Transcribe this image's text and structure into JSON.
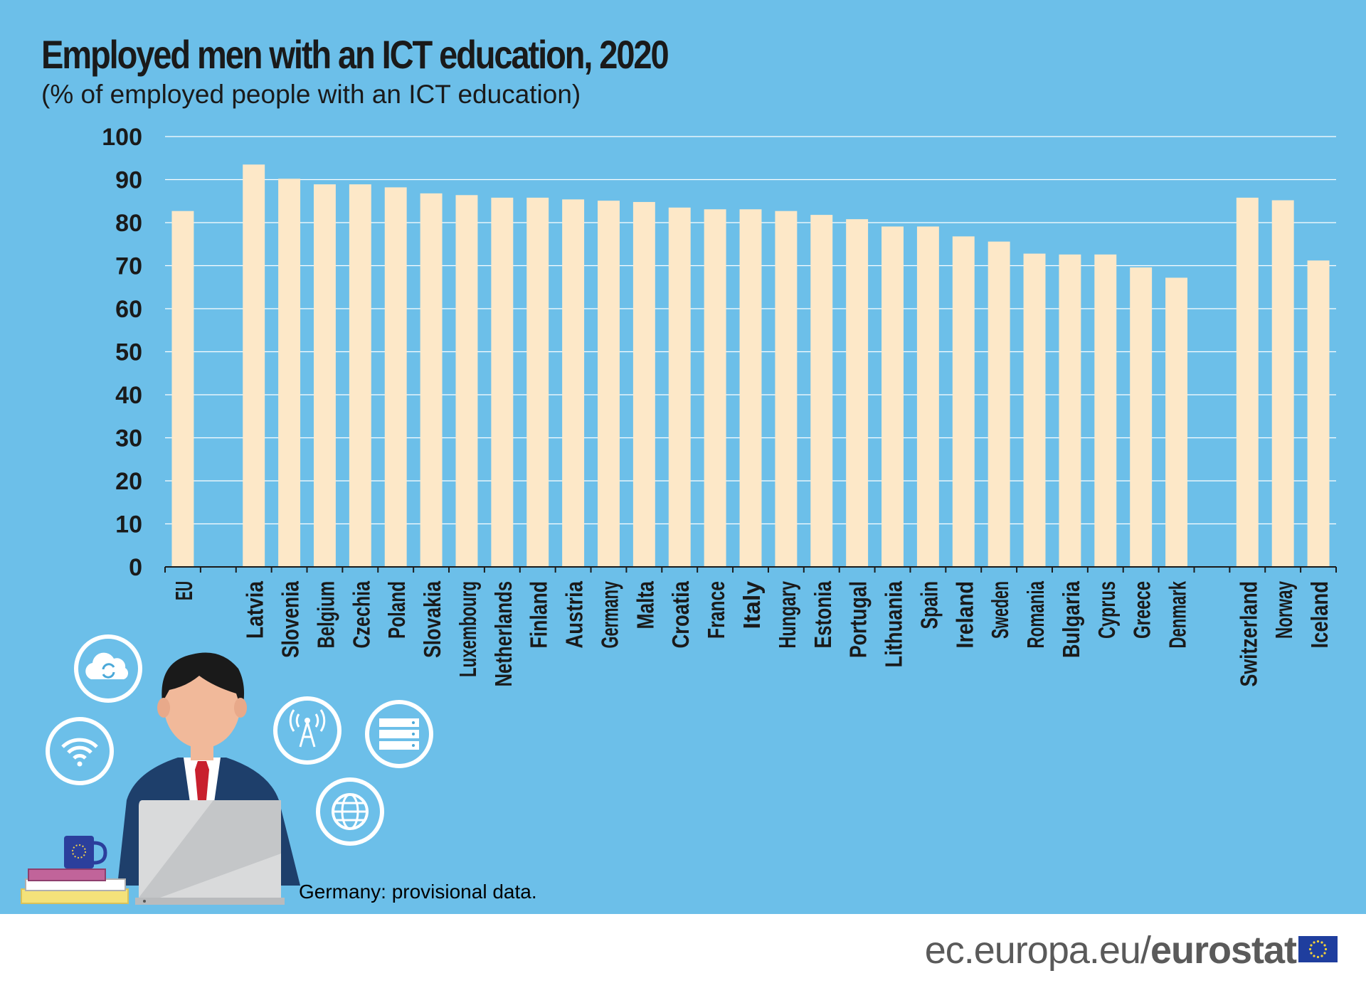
{
  "chart_data": {
    "type": "bar",
    "title": "Employed men with an ICT education, 2020",
    "subtitle": "(% of employed people with an ICT education)",
    "xlabel": "",
    "ylabel": "",
    "ylim": [
      0,
      100
    ],
    "yticks": [
      0,
      10,
      20,
      30,
      40,
      50,
      60,
      70,
      80,
      90,
      100
    ],
    "grid": true,
    "legend": "none",
    "categories": [
      "EU",
      "",
      "Latvia",
      "Slovenia",
      "Belgium",
      "Czechia",
      "Poland",
      "Slovakia",
      "Luxembourg",
      "Netherlands",
      "Finland",
      "Austria",
      "Germany",
      "Malta",
      "Croatia",
      "France",
      "Italy",
      "Hungary",
      "Estonia",
      "Portugal",
      "Lithuania",
      "Spain",
      "Ireland",
      "Sweden",
      "Romania",
      "Bulgaria",
      "Cyprus",
      "Greece",
      "Denmark",
      "",
      "Switzerland",
      "Norway",
      "Iceland"
    ],
    "values": [
      82.7,
      null,
      93.5,
      90.2,
      88.9,
      88.9,
      88.2,
      86.8,
      86.4,
      85.8,
      85.8,
      85.4,
      85.1,
      84.8,
      83.5,
      83.1,
      83.1,
      82.7,
      81.8,
      80.8,
      79.1,
      79.1,
      76.8,
      75.6,
      72.8,
      72.6,
      72.6,
      69.6,
      67.2,
      null,
      85.8,
      85.2,
      71.2
    ]
  },
  "footnote": "Germany: provisional data.",
  "footer": {
    "site": "ec.europa.eu/",
    "brand": "eurostat"
  },
  "colors": {
    "background": "#6cbfe9",
    "bar": "#fde8c8",
    "text": "#1a1a1a",
    "gridline": "#ffffff"
  },
  "icons": [
    "cloud-sync-icon",
    "wifi-icon",
    "antenna-tower-icon",
    "server-icon",
    "globe-icon",
    "mug-icon",
    "books-icon",
    "laptop-icon",
    "eu-flag-icon"
  ]
}
